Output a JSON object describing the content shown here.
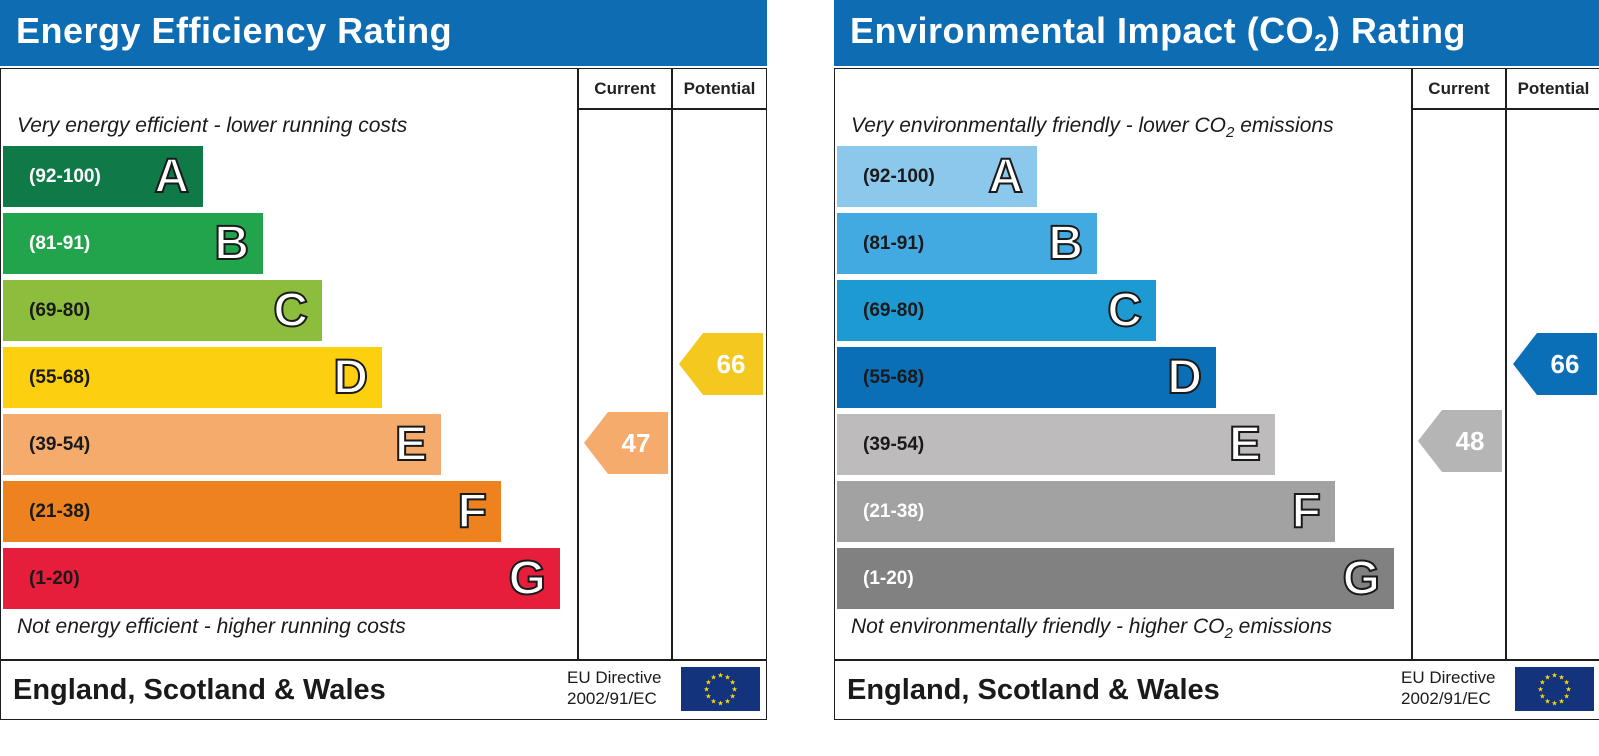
{
  "panels": [
    {
      "id": "energy",
      "title": "Energy Efficiency Rating",
      "col_current": "Current",
      "col_potential": "Potential",
      "note_top": "Very energy efficient - lower running costs",
      "note_bottom": "Not energy efficient - higher running costs",
      "bands": [
        {
          "range": "(92-100)",
          "letter": "A",
          "color": "#0f7a48",
          "dark_text": false
        },
        {
          "range": "(81-91)",
          "letter": "B",
          "color": "#21a44c",
          "dark_text": false
        },
        {
          "range": "(69-80)",
          "letter": "C",
          "color": "#8cbd3c",
          "dark_text": true
        },
        {
          "range": "(55-68)",
          "letter": "D",
          "color": "#fdd00f",
          "dark_text": true
        },
        {
          "range": "(39-54)",
          "letter": "E",
          "color": "#f5ab6b",
          "dark_text": true
        },
        {
          "range": "(21-38)",
          "letter": "F",
          "color": "#ee821f",
          "dark_text": true
        },
        {
          "range": "(1-20)",
          "letter": "G",
          "color": "#e71d3c",
          "dark_text": true
        }
      ],
      "current": {
        "value": "47",
        "rating": 47,
        "color": "#f5ab6b"
      },
      "potential": {
        "value": "66",
        "rating": 66,
        "color": "#f4c81f"
      },
      "footer_country": "England, Scotland & Wales",
      "directive_line1": "EU Directive",
      "directive_line2": "2002/91/EC"
    },
    {
      "id": "env",
      "title_prefix": "Environmental Impact (CO",
      "title_sub": "2",
      "title_suffix": ") Rating",
      "col_current": "Current",
      "col_potential": "Potential",
      "note_top_prefix": "Very environmentally friendly - lower CO",
      "note_top_sub": "2",
      "note_top_suffix": " emissions",
      "note_bottom_prefix": "Not environmentally friendly - higher CO",
      "note_bottom_sub": "2",
      "note_bottom_suffix": " emissions",
      "bands": [
        {
          "range": "(92-100)",
          "letter": "A",
          "color": "#8cc7ec",
          "dark_text": true
        },
        {
          "range": "(81-91)",
          "letter": "B",
          "color": "#42a9e1",
          "dark_text": true
        },
        {
          "range": "(69-80)",
          "letter": "C",
          "color": "#1e9ad3",
          "dark_text": true
        },
        {
          "range": "(55-68)",
          "letter": "D",
          "color": "#0b6fb7",
          "dark_text": true
        },
        {
          "range": "(39-54)",
          "letter": "E",
          "color": "#bdbbbb",
          "dark_text": true
        },
        {
          "range": "(21-38)",
          "letter": "F",
          "color": "#a3a2a2",
          "dark_text": false
        },
        {
          "range": "(1-20)",
          "letter": "G",
          "color": "#828181",
          "dark_text": false
        }
      ],
      "current": {
        "value": "48",
        "rating": 48,
        "color": "#b5b5b5"
      },
      "potential": {
        "value": "66",
        "rating": 66,
        "color": "#0b6fb7"
      },
      "footer_country": "England, Scotland & Wales",
      "directive_line1": "EU Directive",
      "directive_line2": "2002/91/EC"
    }
  ]
}
